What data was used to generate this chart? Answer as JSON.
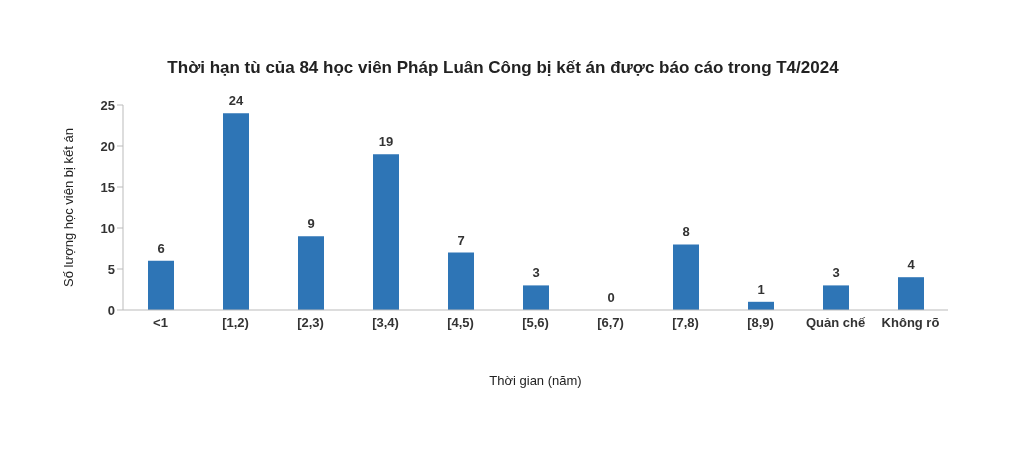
{
  "chart_data": {
    "type": "bar",
    "title": "Thời hạn tù của 84 học viên Pháp Luân Công bị kết án được báo cáo trong T4/2024",
    "xlabel": "Thời gian (năm)",
    "ylabel": "Số lượng học viên bị kết án",
    "categories": [
      "<1",
      "[1,2)",
      "[2,3)",
      "[3,4)",
      "[4,5)",
      "[5,6)",
      "[6,7)",
      "[7,8)",
      "[8,9)",
      "Quản chế",
      "Không rõ"
    ],
    "values": [
      6,
      24,
      9,
      19,
      7,
      3,
      0,
      8,
      1,
      3,
      4
    ],
    "color": "#2e75b6",
    "ylim": [
      0,
      25
    ],
    "yticks": [
      0,
      5,
      10,
      15,
      20,
      25
    ],
    "grid": false,
    "data_labels": true
  }
}
